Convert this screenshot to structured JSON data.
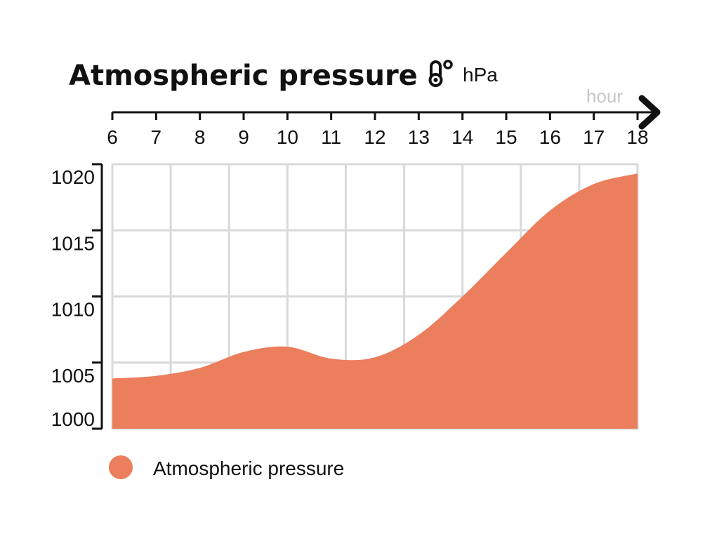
{
  "title": "Atmospheric pressure",
  "unit": "hPa",
  "icon": "thermometer-icon",
  "colors": {
    "area": "#EA7E5D",
    "grid": "#D9D9D9",
    "axis": "#111111",
    "hour_label": "#C6C6C6"
  },
  "chart_data": {
    "type": "area",
    "title": "Atmospheric pressure",
    "xlabel": "hour",
    "ylabel": "hPa",
    "x_ticks": [
      6,
      7,
      8,
      9,
      10,
      11,
      12,
      13,
      14,
      15,
      16,
      17,
      18
    ],
    "y_ticks": [
      1000,
      1005,
      1010,
      1015,
      1020
    ],
    "xlim": [
      6,
      18
    ],
    "ylim": [
      1000,
      1020
    ],
    "grid": true,
    "legend": "bottom-left",
    "series": [
      {
        "name": "Atmospheric pressure",
        "x": [
          6,
          7,
          8,
          9,
          10,
          11,
          12,
          13,
          14,
          15,
          16,
          17,
          18
        ],
        "y": [
          1003.8,
          1004.0,
          1004.6,
          1005.8,
          1006.2,
          1005.3,
          1005.4,
          1007.1,
          1010.0,
          1013.3,
          1016.5,
          1018.5,
          1019.3
        ]
      }
    ]
  }
}
